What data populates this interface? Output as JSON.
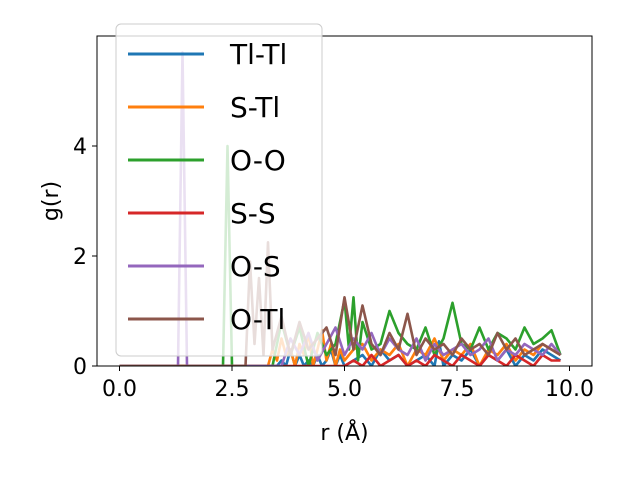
{
  "chart_data": {
    "type": "line",
    "xlabel": "r (Å)",
    "ylabel": "g(r)",
    "xlim": [
      -0.5,
      10.5
    ],
    "ylim": [
      0,
      6.0
    ],
    "xticks": [
      "0.0",
      "2.5",
      "5.0",
      "7.5",
      "10.0"
    ],
    "xtick_values": [
      0,
      2.5,
      5,
      7.5,
      10
    ],
    "yticks": [
      "0",
      "2",
      "4"
    ],
    "ytick_values": [
      0,
      2,
      4
    ],
    "grid": false,
    "legend_position": "top-left",
    "series": [
      {
        "name": "Tl-Tl",
        "color": "#1f77b4",
        "x": [
          0,
          3.5,
          3.6,
          3.7,
          3.8,
          3.9,
          4.0,
          4.1,
          4.2,
          4.3,
          4.4,
          4.5,
          4.6,
          4.7,
          4.8,
          4.9,
          5.0,
          5.2,
          5.4,
          5.6,
          5.8,
          6.0,
          6.2,
          6.4,
          6.6,
          6.8,
          7.0,
          7.1,
          7.2,
          7.4,
          7.6,
          7.8,
          8.0,
          8.2,
          8.4,
          8.6,
          8.8,
          9.0,
          9.2,
          9.4,
          9.6,
          9.8
        ],
        "y": [
          0,
          0,
          0.1,
          0,
          0.3,
          0,
          0.2,
          0,
          0.1,
          0,
          0.2,
          0,
          0.1,
          0.3,
          0,
          0.2,
          0,
          0.1,
          0.2,
          0,
          0.3,
          0.1,
          0.2,
          0,
          0.1,
          0.2,
          0,
          0.45,
          0,
          0.2,
          0.1,
          0.3,
          0,
          0.2,
          0.1,
          0.3,
          0,
          0.2,
          0.1,
          0.3,
          0.2,
          0.1
        ]
      },
      {
        "name": "S-Tl",
        "color": "#ff7f0e",
        "x": [
          0,
          3.3,
          3.4,
          3.5,
          3.6,
          3.7,
          3.8,
          3.9,
          4.0,
          4.1,
          4.2,
          4.3,
          4.4,
          4.5,
          4.6,
          4.7,
          4.8,
          4.9,
          5.0,
          5.2,
          5.4,
          5.6,
          5.8,
          6.0,
          6.2,
          6.4,
          6.6,
          6.8,
          7.0,
          7.2,
          7.4,
          7.6,
          7.8,
          8.0,
          8.2,
          8.4,
          8.6,
          8.8,
          9.0,
          9.2,
          9.4,
          9.6,
          9.8
        ],
        "y": [
          0,
          0,
          0.3,
          0.1,
          0.5,
          0.2,
          0.3,
          0,
          0.4,
          0.2,
          0.6,
          0,
          0.3,
          0.65,
          0.1,
          0.4,
          0,
          0.3,
          0.1,
          0.3,
          0.4,
          0.1,
          0.3,
          0.2,
          0.4,
          0,
          0.3,
          0.2,
          0.5,
          0.1,
          0.3,
          0.2,
          0.4,
          0,
          0.3,
          0.2,
          0.4,
          0.1,
          0.3,
          0.2,
          0.4,
          0.3,
          0.2
        ]
      },
      {
        "name": "O-O",
        "color": "#2ca02c",
        "x": [
          0,
          2.3,
          2.4,
          2.5,
          2.6,
          3.4,
          3.6,
          3.8,
          4.0,
          4.2,
          4.4,
          4.6,
          4.8,
          5.0,
          5.1,
          5.2,
          5.3,
          5.4,
          5.6,
          5.8,
          6.0,
          6.2,
          6.4,
          6.6,
          6.8,
          7.0,
          7.2,
          7.4,
          7.6,
          7.8,
          8.0,
          8.2,
          8.4,
          8.6,
          8.8,
          9.0,
          9.2,
          9.4,
          9.6,
          9.8
        ],
        "y": [
          0,
          0,
          4.0,
          0,
          0,
          0,
          0.8,
          0.2,
          0.7,
          0,
          0.6,
          0.2,
          0.4,
          1.2,
          0.3,
          1.25,
          0.1,
          0.8,
          0.3,
          0.4,
          1.0,
          0.6,
          0.4,
          0.3,
          0.7,
          0.2,
          0.5,
          1.15,
          0.4,
          0.3,
          0.7,
          0.3,
          0.6,
          0.5,
          0.3,
          0.7,
          0.4,
          0.5,
          0.65,
          0.2
        ]
      },
      {
        "name": "S-S",
        "color": "#d62728",
        "x": [
          0,
          5.0,
          5.2,
          5.4,
          5.6,
          5.8,
          6.0,
          6.2,
          6.4,
          6.6,
          6.8,
          7.0,
          7.2,
          7.4,
          7.6,
          7.8,
          8.0,
          8.2,
          8.4,
          8.6,
          8.8,
          9.0,
          9.2,
          9.4,
          9.6,
          9.8
        ],
        "y": [
          0,
          0,
          0.1,
          0,
          0.2,
          0,
          0.1,
          0.2,
          0,
          0.1,
          0,
          0.2,
          0.1,
          0,
          0.2,
          0.1,
          0,
          0.2,
          0.1,
          0,
          0.2,
          0.1,
          0,
          0.2,
          0.1,
          0.1
        ]
      },
      {
        "name": "O-S",
        "color": "#9467bd",
        "x": [
          0,
          1.3,
          1.4,
          1.5,
          3.6,
          3.8,
          4.0,
          4.2,
          4.4,
          4.6,
          4.8,
          5.0,
          5.2,
          5.4,
          5.6,
          5.8,
          6.0,
          6.2,
          6.4,
          6.6,
          6.8,
          7.0,
          7.2,
          7.4,
          7.6,
          7.8,
          8.0,
          8.2,
          8.4,
          8.6,
          8.8,
          9.0,
          9.2,
          9.4,
          9.6,
          9.8
        ],
        "y": [
          0,
          0,
          5.7,
          0,
          0,
          0.5,
          0.2,
          0.6,
          0.1,
          0.4,
          0.7,
          0.2,
          0.5,
          0.3,
          0.6,
          0.2,
          0.5,
          0.3,
          0.2,
          0.5,
          0.1,
          0.4,
          0.2,
          0.3,
          0.4,
          0.2,
          0.3,
          0.5,
          0.1,
          0.3,
          0.2,
          0.4,
          0.3,
          0.2,
          0.4,
          0.2
        ]
      },
      {
        "name": "O-Tl",
        "color": "#8c564b",
        "x": [
          0,
          2.8,
          2.9,
          3.0,
          3.1,
          3.2,
          3.3,
          3.4,
          3.6,
          3.8,
          4.0,
          4.2,
          4.4,
          4.6,
          4.8,
          5.0,
          5.2,
          5.4,
          5.6,
          5.8,
          6.0,
          6.2,
          6.4,
          6.6,
          6.8,
          7.0,
          7.2,
          7.4,
          7.6,
          7.8,
          8.0,
          8.2,
          8.4,
          8.6,
          8.8,
          9.0,
          9.2,
          9.4,
          9.6,
          9.8
        ],
        "y": [
          0,
          0,
          1.9,
          0.4,
          1.6,
          0.2,
          2.25,
          0.3,
          0.9,
          0.2,
          0.8,
          0.3,
          0.5,
          0.7,
          0.2,
          1.25,
          0.3,
          1.1,
          0.4,
          0.2,
          0.6,
          0.3,
          0.95,
          0.2,
          0.5,
          0.3,
          0.4,
          0.2,
          0.5,
          0.3,
          0.4,
          0.2,
          0.6,
          0.3,
          0.5,
          0.2,
          0.3,
          0.4,
          0.3,
          0.2
        ]
      }
    ]
  }
}
